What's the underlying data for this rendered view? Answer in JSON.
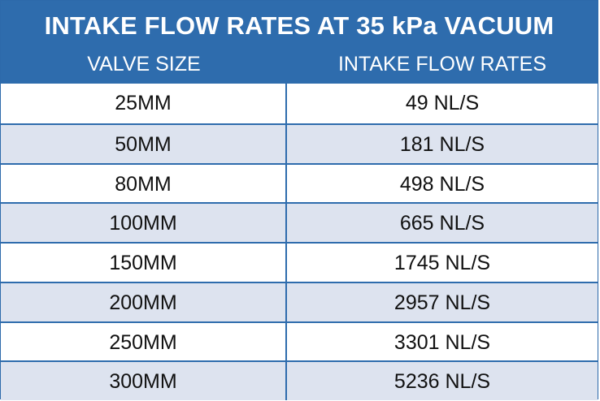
{
  "table": {
    "title": "INTAKE FLOW RATES AT 35 kPa VACUUM",
    "columns": [
      "VALVE SIZE",
      "INTAKE FLOW RATES"
    ],
    "rows": [
      [
        "25MM",
        "49 NL/S"
      ],
      [
        "50MM",
        "181 NL/S"
      ],
      [
        "80MM",
        "498 NL/S"
      ],
      [
        "100MM",
        "665 NL/S"
      ],
      [
        "150MM",
        "1745 NL/S"
      ],
      [
        "200MM",
        "2957 NL/S"
      ],
      [
        "250MM",
        "3301 NL/S"
      ],
      [
        "300MM",
        "5236 NL/S"
      ]
    ]
  },
  "colors": {
    "header_bg": "#2e6cad",
    "row_alt_bg": "#dde3ef",
    "row_bg": "#ffffff"
  }
}
